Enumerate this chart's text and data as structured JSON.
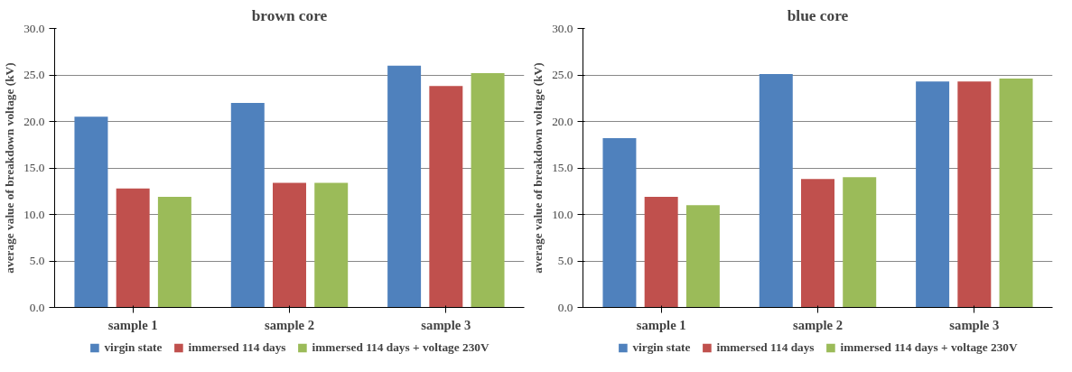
{
  "chart_data": [
    {
      "type": "bar",
      "title": "brown core",
      "ylabel": "average value of breakdown voltage (kV)",
      "categories": [
        "sample 1",
        "sample 2",
        "sample 3"
      ],
      "series": [
        {
          "name": "virgin state",
          "color": "#4f81bd",
          "values": [
            20.5,
            22.0,
            26.0
          ]
        },
        {
          "name": "immersed 114 days",
          "color": "#c0504d",
          "values": [
            12.8,
            13.4,
            23.8
          ]
        },
        {
          "name": "immersed 114 days + voltage 230V",
          "color": "#9bbb59",
          "values": [
            11.9,
            13.4,
            25.2
          ]
        }
      ],
      "ylim": [
        0,
        30
      ],
      "yticks": [
        {
          "value": 0,
          "label": "0.0"
        },
        {
          "value": 5,
          "label": "5.0"
        },
        {
          "value": 10,
          "label": "10.0"
        },
        {
          "value": 15,
          "label": "15.0"
        },
        {
          "value": 20,
          "label": "20.0"
        },
        {
          "value": 25,
          "label": "25.0"
        },
        {
          "value": 30,
          "label": "30.0"
        }
      ],
      "grid": "y",
      "legend": "bottom"
    },
    {
      "type": "bar",
      "title": "blue core",
      "ylabel": "average value of breakdown voltage (kV)",
      "categories": [
        "sample 1",
        "sample 2",
        "sample 3"
      ],
      "series": [
        {
          "name": "virgin state",
          "color": "#4f81bd",
          "values": [
            18.2,
            25.1,
            24.3
          ]
        },
        {
          "name": "immersed 114 days",
          "color": "#c0504d",
          "values": [
            11.9,
            13.8,
            24.3
          ]
        },
        {
          "name": "immersed 114 days + voltage 230V",
          "color": "#9bbb59",
          "values": [
            11.0,
            14.0,
            24.6
          ]
        }
      ],
      "ylim": [
        0,
        30
      ],
      "yticks": [
        {
          "value": 0,
          "label": "0.0"
        },
        {
          "value": 5,
          "label": "5.0"
        },
        {
          "value": 10,
          "label": "10.0"
        },
        {
          "value": 15,
          "label": "15.0"
        },
        {
          "value": 20,
          "label": "20.0"
        },
        {
          "value": 25,
          "label": "25.0"
        },
        {
          "value": 30,
          "label": "30.0"
        }
      ],
      "grid": "y",
      "legend": "bottom"
    }
  ]
}
